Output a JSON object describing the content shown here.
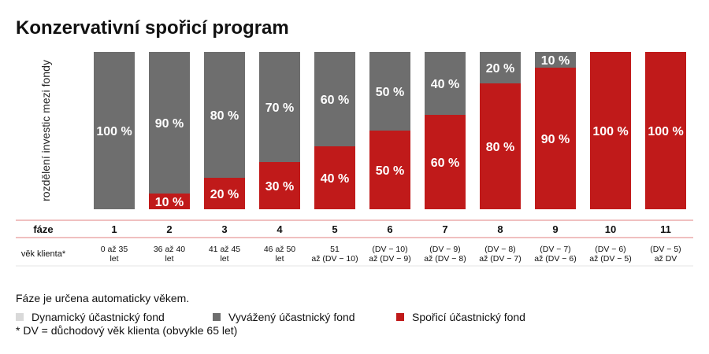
{
  "chart_data": {
    "type": "bar",
    "stacked": true,
    "title": "Konzervativní spořicí program",
    "ylabel": "rozdělení investic mezi fondy",
    "ylim": [
      0,
      100
    ],
    "categories": [
      "1",
      "2",
      "3",
      "4",
      "5",
      "6",
      "7",
      "8",
      "9",
      "10",
      "11"
    ],
    "series": [
      {
        "name": "Dynamický účastnický fond",
        "color": "#d9d9d9",
        "values": [
          0,
          0,
          0,
          0,
          0,
          0,
          0,
          0,
          0,
          0,
          0
        ],
        "labels": [
          "",
          "",
          "",
          "",
          "",
          "",
          "",
          "",
          "",
          "",
          ""
        ]
      },
      {
        "name": "Vyvážený účastnický fond",
        "color": "#6e6e6e",
        "values": [
          100,
          90,
          80,
          70,
          60,
          50,
          40,
          20,
          10,
          0,
          0
        ],
        "labels": [
          "100 %",
          "90 %",
          "80 %",
          "70 %",
          "60 %",
          "50 %",
          "40 %",
          "20 %",
          "10 %",
          "",
          ""
        ]
      },
      {
        "name": "Spořicí účastnický fond",
        "color": "#c01a1a",
        "values": [
          0,
          10,
          20,
          30,
          40,
          50,
          60,
          80,
          90,
          100,
          100
        ],
        "labels": [
          "",
          "10 %",
          "20 %",
          "30 %",
          "40 %",
          "50 %",
          "60 %",
          "80 %",
          "90 %",
          "100 %",
          "100 %"
        ]
      }
    ],
    "table": {
      "row1_label": "fáze",
      "row2_label": "věk klienta*",
      "ages": [
        [
          "0 až 35",
          "let"
        ],
        [
          "36 až 40",
          "let"
        ],
        [
          "41 až 45",
          "let"
        ],
        [
          "46 až 50",
          "let"
        ],
        [
          "51",
          "až (DV − 10)"
        ],
        [
          "(DV − 10)",
          "až (DV − 9)"
        ],
        [
          "(DV − 9)",
          "až (DV − 8)"
        ],
        [
          "(DV − 8)",
          "až (DV − 7)"
        ],
        [
          "(DV − 7)",
          "až (DV − 6)"
        ],
        [
          "(DV − 6)",
          "až (DV − 5)"
        ],
        [
          "(DV − 5)",
          "až DV"
        ]
      ]
    }
  },
  "notes": {
    "phase_note": "Fáze je určena automaticky věkem.",
    "footnote": "* DV = důchodový věk klienta (obvykle 65 let)"
  }
}
